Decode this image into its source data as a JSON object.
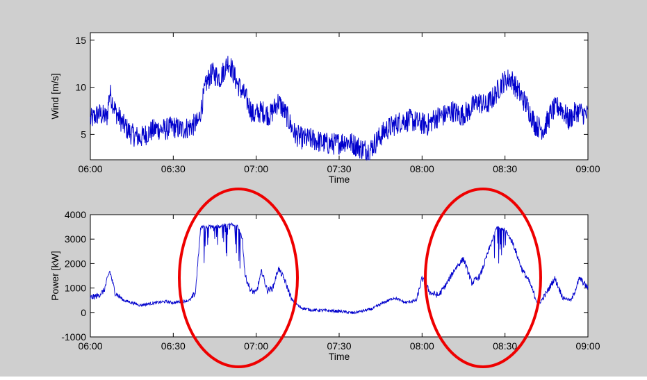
{
  "chart_data": [
    {
      "type": "line",
      "xlabel": "Time",
      "ylabel": "Wind [m/s]",
      "xlim": [
        "06:00",
        "09:00"
      ],
      "ylim": [
        2.3,
        15.8
      ],
      "xticks": [
        "06:00",
        "06:30",
        "07:00",
        "07:30",
        "08:00",
        "08:30",
        "09:00"
      ],
      "yticks": [
        5,
        10,
        15
      ],
      "grid": false,
      "series": [
        {
          "color": "#0000cc",
          "x": [
            "06:00",
            "06:03",
            "06:06",
            "06:07",
            "06:09",
            "06:12",
            "06:15",
            "06:18",
            "06:21",
            "06:24",
            "06:27",
            "06:30",
            "06:33",
            "06:36",
            "06:39",
            "06:42",
            "06:44",
            "06:47",
            "06:50",
            "06:53",
            "06:56",
            "06:59",
            "07:02",
            "07:05",
            "07:08",
            "07:11",
            "07:14",
            "07:17",
            "07:20",
            "07:23",
            "07:26",
            "07:29",
            "07:32",
            "07:35",
            "07:38",
            "07:41",
            "07:44",
            "07:47",
            "07:50",
            "07:53",
            "07:56",
            "07:59",
            "08:02",
            "08:05",
            "08:08",
            "08:11",
            "08:14",
            "08:17",
            "08:20",
            "08:23",
            "08:26",
            "08:29",
            "08:32",
            "08:35",
            "08:38",
            "08:41",
            "08:44",
            "08:47",
            "08:50",
            "08:53",
            "08:56",
            "09:00"
          ],
          "values": [
            6.5,
            7.2,
            6.8,
            9.5,
            7.5,
            6.0,
            5.0,
            4.6,
            5.2,
            5.6,
            5.5,
            5.8,
            5.5,
            5.8,
            6.2,
            10.5,
            11.5,
            11.0,
            12.8,
            10.5,
            9.0,
            7.0,
            7.5,
            7.0,
            8.5,
            7.0,
            5.0,
            4.5,
            4.5,
            4.2,
            4.0,
            4.0,
            4.3,
            4.0,
            3.5,
            3.3,
            4.5,
            5.5,
            6.0,
            6.5,
            6.5,
            6.2,
            6.0,
            6.8,
            7.0,
            7.5,
            7.0,
            7.5,
            8.5,
            8.0,
            9.0,
            10.5,
            11.0,
            9.5,
            8.0,
            6.0,
            5.5,
            7.5,
            8.0,
            6.5,
            7.5,
            7.0
          ]
        }
      ]
    },
    {
      "type": "line",
      "xlabel": "Time",
      "ylabel": "Power [kW]",
      "xlim": [
        "06:00",
        "09:00"
      ],
      "ylim": [
        -1000,
        4000
      ],
      "xticks": [
        "06:00",
        "06:30",
        "07:00",
        "07:30",
        "08:00",
        "08:30",
        "09:00"
      ],
      "yticks": [
        -1000,
        0,
        1000,
        2000,
        3000,
        4000
      ],
      "grid": false,
      "series": [
        {
          "color": "#0000cc",
          "x": [
            "06:00",
            "06:03",
            "06:05",
            "06:07",
            "06:09",
            "06:12",
            "06:15",
            "06:18",
            "06:21",
            "06:24",
            "06:27",
            "06:30",
            "06:33",
            "06:36",
            "06:38",
            "06:40",
            "06:41",
            "06:43",
            "06:45",
            "06:48",
            "06:51",
            "06:53",
            "06:55",
            "06:56",
            "06:58",
            "07:00",
            "07:02",
            "07:04",
            "07:06",
            "07:08",
            "07:10",
            "07:13",
            "07:16",
            "07:20",
            "07:25",
            "07:30",
            "07:35",
            "07:38",
            "07:42",
            "07:46",
            "07:50",
            "07:54",
            "07:58",
            "08:00",
            "08:03",
            "08:06",
            "08:09",
            "08:12",
            "08:15",
            "08:18",
            "08:21",
            "08:24",
            "08:27",
            "08:30",
            "08:33",
            "08:36",
            "08:39",
            "08:42",
            "08:45",
            "08:48",
            "08:51",
            "08:54",
            "08:57",
            "09:00"
          ],
          "values": [
            600,
            700,
            900,
            1700,
            800,
            500,
            400,
            300,
            350,
            400,
            450,
            400,
            450,
            500,
            800,
            3600,
            3500,
            3500,
            3500,
            3550,
            3600,
            3600,
            3000,
            1500,
            900,
            800,
            1700,
            900,
            1000,
            1800,
            1400,
            500,
            200,
            100,
            80,
            50,
            -20,
            50,
            150,
            400,
            600,
            400,
            500,
            1400,
            800,
            700,
            1200,
            1800,
            2200,
            1200,
            1500,
            2500,
            3500,
            3400,
            2800,
            1800,
            1200,
            300,
            800,
            1400,
            600,
            500,
            1400,
            1000
          ]
        }
      ]
    }
  ],
  "annotations": {
    "ellipse_color": "#ee0000"
  }
}
